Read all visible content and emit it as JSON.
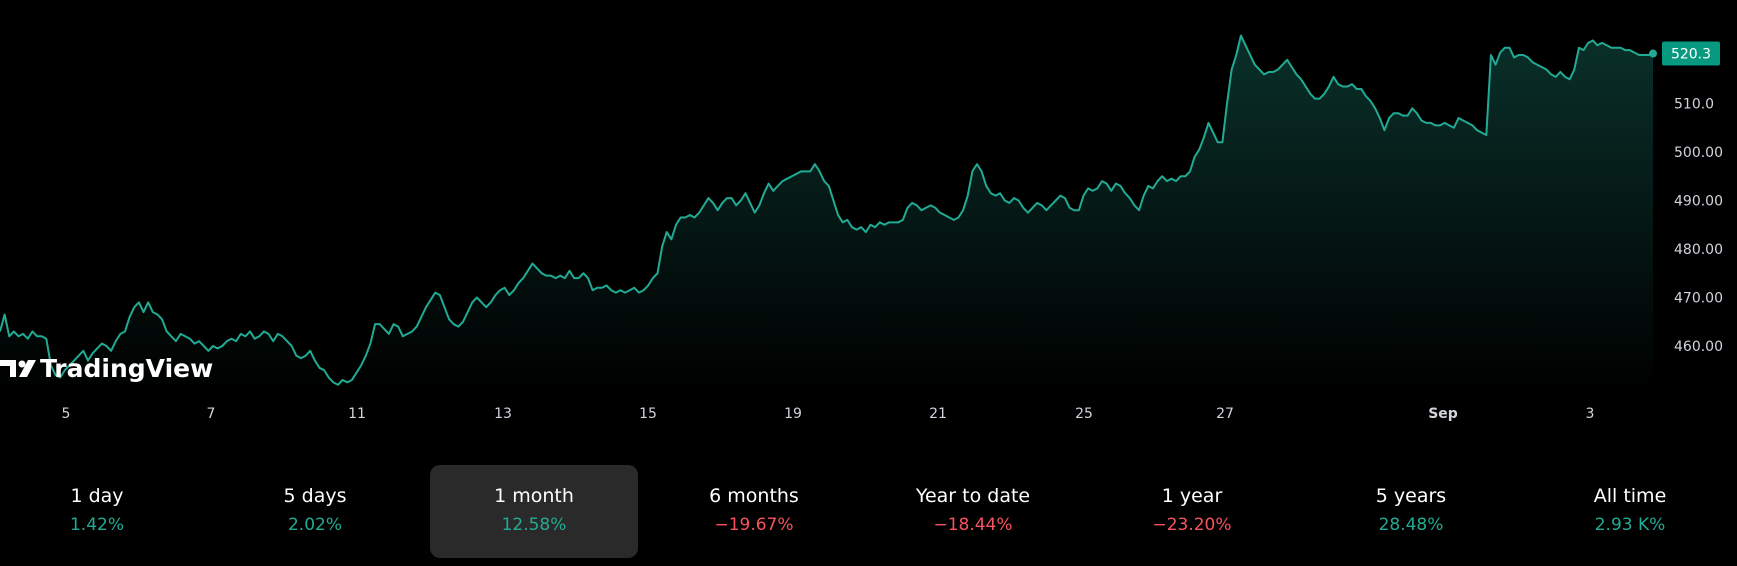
{
  "colors": {
    "background": "#000000",
    "line": "#22ab94",
    "positive": "#22ab94",
    "negative": "#f7525f",
    "text": "#d1d4dc",
    "active_tab_bg": "#2a2a2a",
    "badge_bg": "#089981"
  },
  "logo": {
    "name": "tradingview-logo-icon",
    "text": "TradingView"
  },
  "chart_data": {
    "type": "area",
    "title": "",
    "xlabel": "",
    "ylabel": "",
    "ylim": [
      450,
      525
    ],
    "last_price": "520.3",
    "y_ticks": [
      "510.0",
      "500.00",
      "490.00",
      "480.00",
      "470.00",
      "460.00"
    ],
    "x_ticks": [
      "5",
      "7",
      "11",
      "13",
      "15",
      "19",
      "21",
      "25",
      "27",
      "Sep",
      "3"
    ],
    "grid": false,
    "legend": "none",
    "series": [
      {
        "values": [
          463,
          466.5,
          462,
          463,
          462,
          462.5,
          461.5,
          463,
          462,
          462,
          461.5,
          456,
          454,
          453.5,
          455,
          456,
          457,
          458,
          459,
          457,
          458.5,
          459.5,
          460.5,
          460,
          459,
          461,
          462.5,
          463,
          466,
          468,
          469,
          467,
          469,
          467,
          466.5,
          465.5,
          463,
          462,
          461,
          462.5,
          462,
          461.5,
          460.5,
          461,
          460,
          459,
          460,
          459.5,
          460,
          461,
          461.5,
          461,
          462.5,
          462,
          463,
          461.5,
          462,
          463,
          462.5,
          461,
          462.5,
          462,
          461,
          460,
          458,
          457.5,
          458,
          459,
          457,
          455.5,
          455,
          453.5,
          452.5,
          452,
          453,
          452.5,
          453,
          454.5,
          456,
          458,
          460.5,
          464.5,
          464.5,
          463.5,
          462.5,
          464.5,
          464,
          462,
          462.5,
          463,
          464,
          466,
          468,
          469.5,
          471,
          470.5,
          468,
          465.5,
          464.5,
          464,
          465,
          467,
          469,
          470,
          469,
          468,
          469,
          470.5,
          471.5,
          472,
          470.5,
          471.5,
          473,
          474,
          475.5,
          477,
          476,
          475,
          474.5,
          474.5,
          474,
          474.5,
          474,
          475.5,
          474,
          474,
          475,
          474,
          471.5,
          472,
          472,
          472.5,
          471.5,
          471,
          471.5,
          471,
          471.5,
          472,
          471,
          471.5,
          472.5,
          474,
          475,
          480.5,
          483.5,
          482,
          485,
          486.5,
          486.5,
          487,
          486.5,
          487.5,
          489,
          490.5,
          489.5,
          488,
          489.5,
          490.5,
          490.5,
          489,
          490,
          491.5,
          489.5,
          487.5,
          489,
          491.5,
          493.5,
          492,
          493,
          494,
          494.5,
          495,
          495.5,
          496,
          496,
          496,
          497.5,
          496,
          494,
          493,
          490,
          487,
          485.5,
          486,
          484.5,
          484,
          484.5,
          483.5,
          485,
          484.5,
          485.5,
          485,
          485.5,
          485.5,
          485.5,
          486,
          488.5,
          489.5,
          489,
          488,
          488.5,
          489,
          488.5,
          487.5,
          487,
          486.5,
          486,
          486.5,
          488,
          491,
          496,
          497.5,
          496,
          493,
          491.5,
          491,
          491.5,
          490,
          489.5,
          490.5,
          490,
          488.5,
          487.5,
          488.5,
          489.5,
          489,
          488,
          489,
          490,
          491,
          490.5,
          488.5,
          488,
          488,
          491,
          492.5,
          492,
          492.5,
          494,
          493.5,
          492,
          493.5,
          493,
          491.5,
          490.5,
          489,
          488,
          491,
          493,
          492.5,
          494,
          495,
          494,
          494.5,
          494,
          495,
          495,
          496,
          499,
          500.5,
          503,
          506,
          504,
          502,
          502,
          510,
          517,
          520,
          524,
          522,
          520,
          518,
          517,
          516,
          516.5,
          516.5,
          517,
          518,
          519,
          517.5,
          516,
          515,
          513.5,
          512,
          511,
          511,
          512,
          513.5,
          515.5,
          514,
          513.5,
          513.5,
          514,
          513,
          513,
          511.5,
          510.5,
          509,
          507,
          504.5,
          507,
          508,
          508,
          507.5,
          507.5,
          509,
          508,
          506.5,
          506,
          506,
          505.5,
          505.5,
          506,
          505.5,
          505,
          507,
          506.5,
          506,
          505.5,
          504.5,
          504,
          503.5,
          520,
          518,
          520.5,
          521.5,
          521.5,
          519.5,
          520,
          520,
          519.5,
          518.5,
          518,
          517.5,
          517,
          516,
          515.5,
          516.5,
          515.5,
          515,
          517,
          521.5,
          521,
          522.5,
          523,
          522,
          522.5,
          522,
          521.5,
          521.5,
          521.5,
          521,
          521,
          520.5,
          520,
          520,
          520,
          520.3
        ]
      }
    ]
  },
  "periods": [
    {
      "label": "1 day",
      "value": "1.42%",
      "dir": "up"
    },
    {
      "label": "5 days",
      "value": "2.02%",
      "dir": "up"
    },
    {
      "label": "1 month",
      "value": "12.58%",
      "dir": "up",
      "active": true
    },
    {
      "label": "6 months",
      "value": "−19.67%",
      "dir": "down"
    },
    {
      "label": "Year to date",
      "value": "−18.44%",
      "dir": "down"
    },
    {
      "label": "1 year",
      "value": "−23.20%",
      "dir": "down"
    },
    {
      "label": "5 years",
      "value": "28.48%",
      "dir": "up"
    },
    {
      "label": "All time",
      "value": "2.93 K%",
      "dir": "up"
    }
  ]
}
